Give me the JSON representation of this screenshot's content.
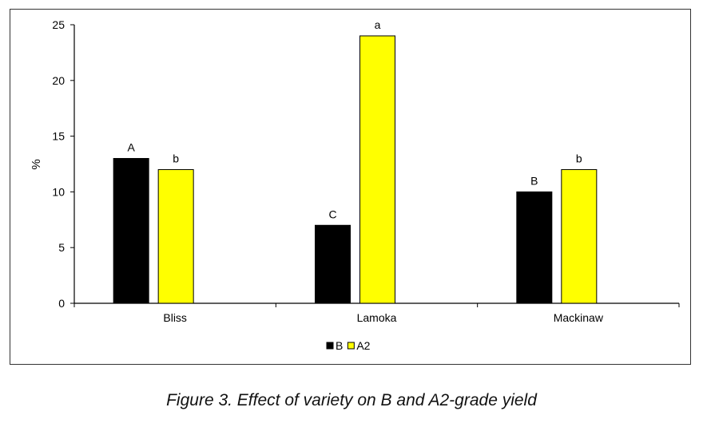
{
  "chart_data": {
    "type": "bar",
    "title": "",
    "xlabel": "",
    "ylabel": "%",
    "ylim": [
      0,
      25
    ],
    "yticks": [
      0,
      5,
      10,
      15,
      20,
      25
    ],
    "categories": [
      "Bliss",
      "Lamoka",
      "Mackinaw"
    ],
    "series": [
      {
        "name": "B",
        "color": "#000000",
        "values": [
          13,
          7,
          10
        ],
        "labels": [
          "A",
          "C",
          "B"
        ]
      },
      {
        "name": "A2",
        "color": "#ffff00",
        "values": [
          12,
          24,
          12
        ],
        "labels": [
          "b",
          "a",
          "b"
        ]
      }
    ],
    "legend": "bottom",
    "grid": false
  },
  "caption": "Figure 3. Effect of variety on B and A2-grade yield"
}
